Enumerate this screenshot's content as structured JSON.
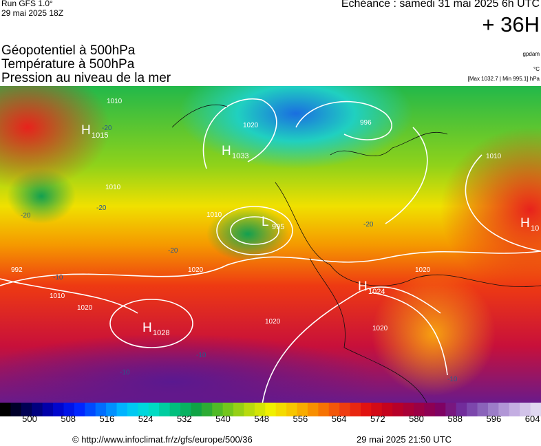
{
  "header": {
    "run": "Run GFS 1.0°",
    "run_date": "29 mai 2025 18Z",
    "echeance": "Echéance : samedi 31 mai 2025 6h UTC",
    "step": "+ 36H"
  },
  "titles": [
    "Géopotentiel à 500hPa",
    "Température à 500hPa",
    "Pression au niveau de la mer"
  ],
  "units": {
    "geopotential": "gpdam",
    "temperature": "°C",
    "pressure": "[Max 1032.7 | Min 995.1] hPa"
  },
  "centers": [
    {
      "letter": "H",
      "value": "1015"
    },
    {
      "letter": "H",
      "value": "1033"
    },
    {
      "letter": "L",
      "value": "995"
    },
    {
      "letter": "H",
      "value": "1024"
    },
    {
      "letter": "H",
      "value": "1028"
    },
    {
      "letter": "H",
      "value": "10"
    }
  ],
  "isobar_labels": [
    "1010",
    "1020",
    "996",
    "1010",
    "1010",
    "1020",
    "1010",
    "1020",
    "992",
    "1020",
    "1020",
    "1020",
    "1010"
  ],
  "temperature_labels": [
    "-20",
    "-20",
    "-20",
    "-20",
    "-20",
    "-10",
    "-10",
    "-10",
    "-10"
  ],
  "scale": {
    "labels": [
      "500",
      "508",
      "516",
      "524",
      "532",
      "540",
      "548",
      "556",
      "564",
      "572",
      "580",
      "588",
      "596",
      "604"
    ]
  },
  "footer": {
    "url": "© http://www.infoclimat.fr/z/gfs/europe/500/36",
    "generated": "29 mai 2025 21:50 UTC"
  }
}
